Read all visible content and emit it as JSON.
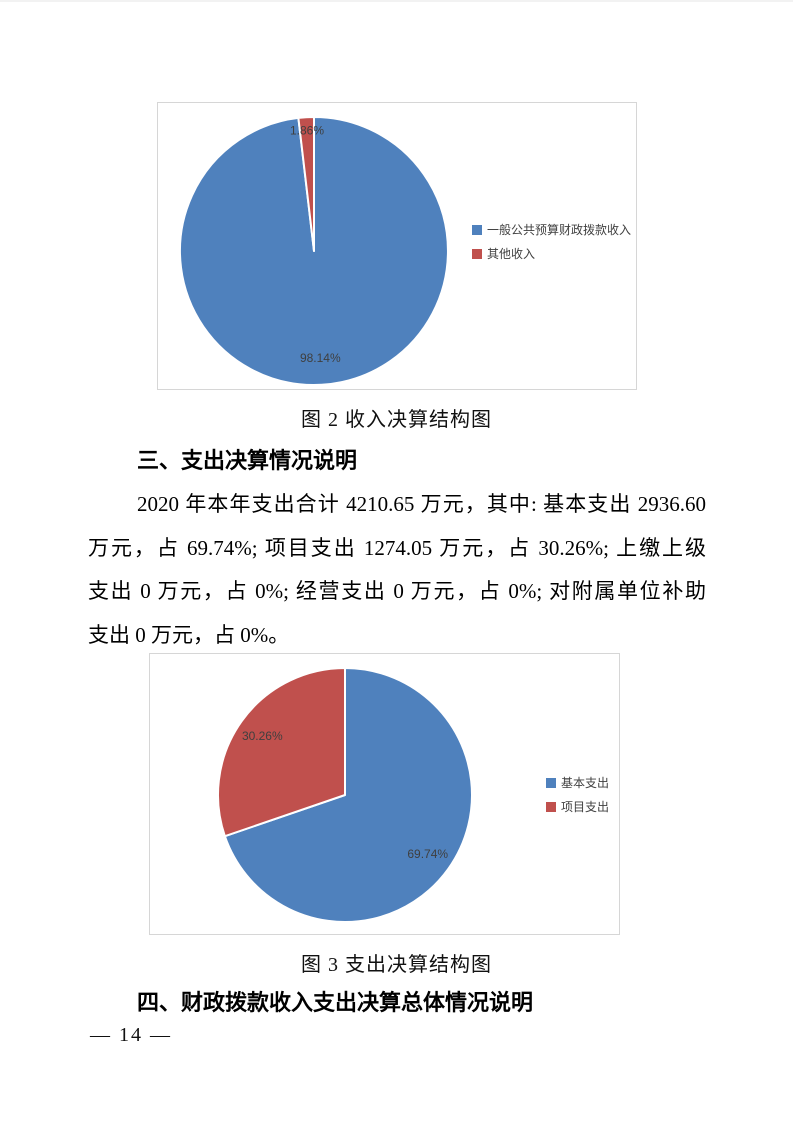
{
  "captions": {
    "figure2": "图 2 收入决算结构图",
    "figure3": "图 3 支出决算结构图"
  },
  "headings": {
    "section3": "三、支出决算情况说明",
    "section4": "四、财政拨款收入支出决算总体情况说明"
  },
  "paragraph": {
    "lines": [
      "2020 年本年支出合计 4210.65 万元，其中: 基本支出 2936.60",
      "万元，占 69.74%; 项目支出 1274.05 万元，占 30.26%; 上缴上级",
      "支出 0 万元，占 0%; 经营支出 0 万元，占 0%; 对附属单位补助",
      "支出 0 万元，占 0%。"
    ]
  },
  "page": {
    "number_label": "— 14 —"
  },
  "colors": {
    "series_blue": "#4F81BD",
    "series_red": "#C0504D",
    "chart_border": "#D6D6D6",
    "label_gray": "#3F3F3F"
  },
  "chart_data": [
    {
      "type": "pie",
      "title": "图 2 收入决算结构图",
      "legend_position": "right",
      "start_angle_deg": 0,
      "direction": "clockwise",
      "slices": [
        {
          "label": "一般公共预算财政拨款收入",
          "value": 98.14,
          "display": "98.14%",
          "color": "#4F81BD"
        },
        {
          "label": "其他收入",
          "value": 1.86,
          "display": "1.86%",
          "color": "#C0504D"
        }
      ]
    },
    {
      "type": "pie",
      "title": "图 3 支出决算结构图",
      "legend_position": "right",
      "start_angle_deg": 0,
      "direction": "clockwise",
      "slices": [
        {
          "label": "基本支出",
          "value": 69.74,
          "display": "69.74%",
          "color": "#4F81BD"
        },
        {
          "label": "项目支出",
          "value": 30.26,
          "display": "30.26%",
          "color": "#C0504D"
        }
      ]
    }
  ]
}
